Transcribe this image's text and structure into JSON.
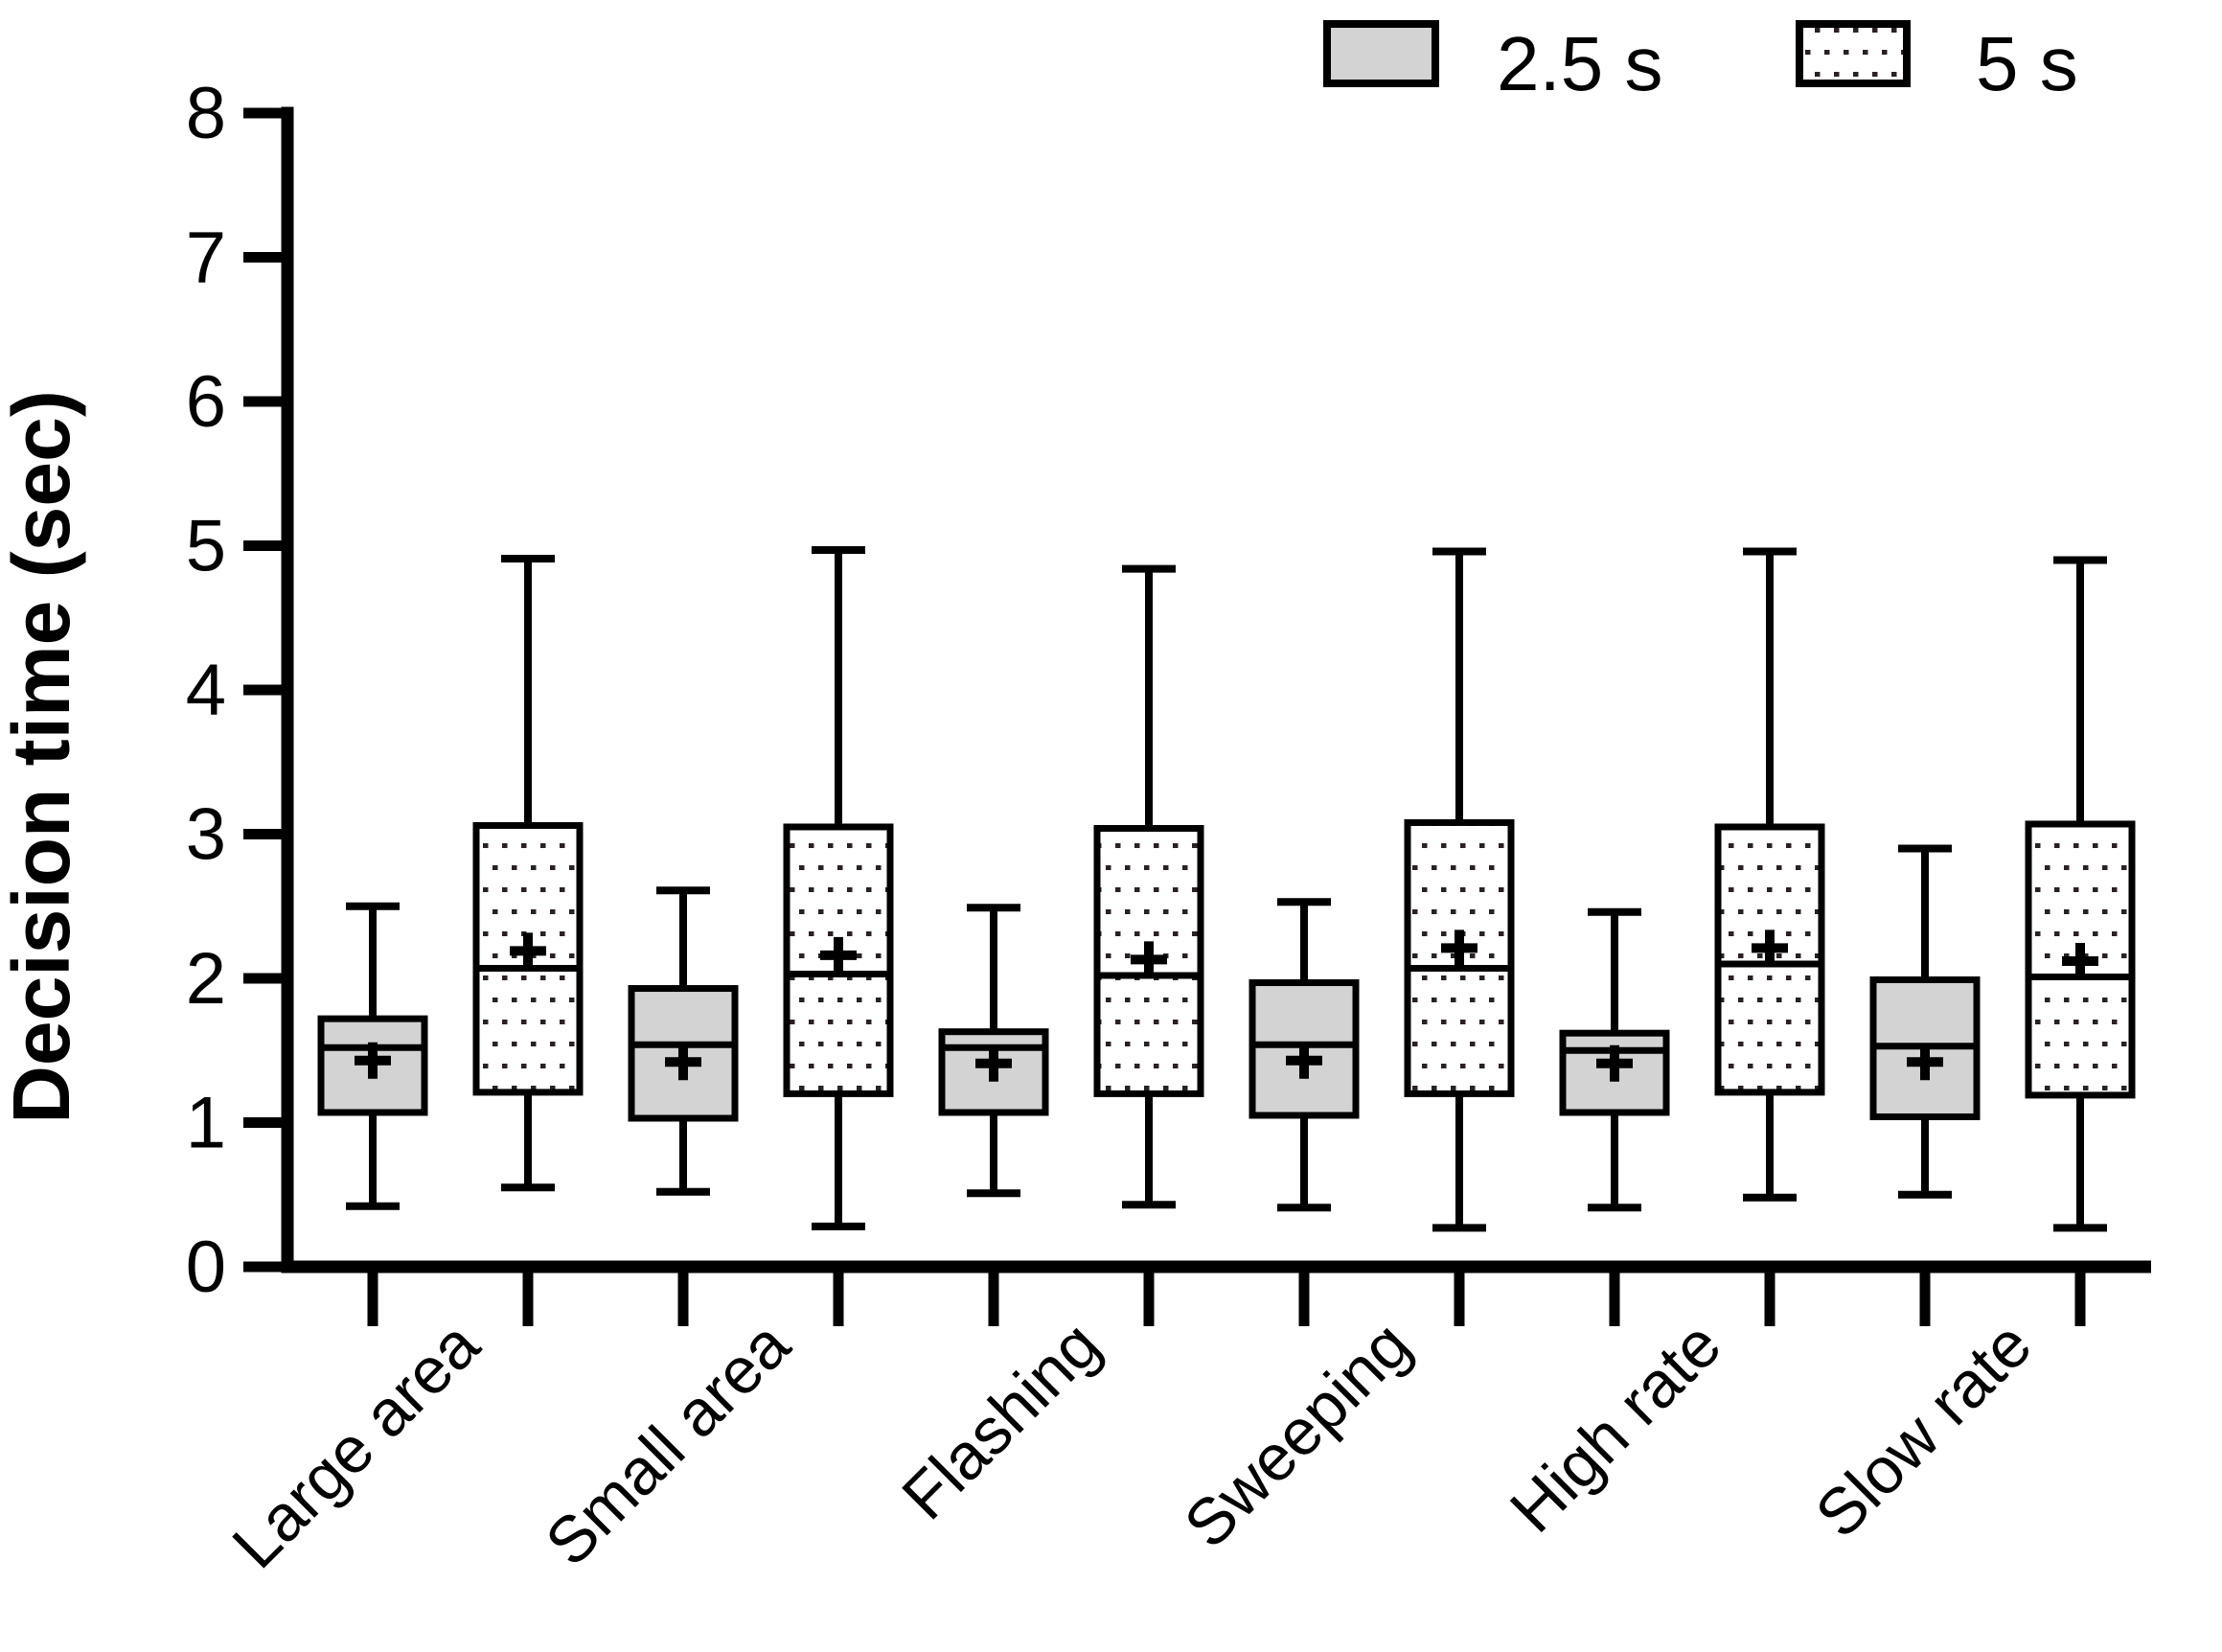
{
  "figure": {
    "ylabel": "Decision time (sec)",
    "legend": [
      {
        "label": "2.5 s",
        "swatch": "gray-solid"
      },
      {
        "label": "5 s",
        "swatch": "dotted"
      }
    ]
  },
  "colors": {
    "background": "#ffffff",
    "axis_color": "#000000",
    "box_gray_fill": "#d3d3d3",
    "box_dotted_fill": "#ffffff",
    "dot_color": "#2a2123",
    "text_color": "#000000"
  },
  "chart_data": {
    "type": "boxplot",
    "title": "",
    "xlabel": "",
    "ylabel": "Decision time (sec)",
    "ylim": [
      0,
      8
    ],
    "yticks": [
      0,
      1,
      2,
      3,
      4,
      5,
      6,
      7,
      8
    ],
    "grid": false,
    "legend_position": "top-right",
    "mean_marker": "+",
    "whisker_caps": true,
    "categories": [
      "Large area",
      "Small area",
      "Flashing",
      "Sweeping",
      "High rate",
      "Slow rate"
    ],
    "series": [
      {
        "name": "2.5 s",
        "style": "solid-gray",
        "boxes": [
          {
            "min": 0.42,
            "q1": 1.07,
            "median": 1.52,
            "mean": 1.43,
            "q3": 1.72,
            "max": 2.5
          },
          {
            "min": 0.52,
            "q1": 1.03,
            "median": 1.54,
            "mean": 1.42,
            "q3": 1.93,
            "max": 2.61
          },
          {
            "min": 0.51,
            "q1": 1.07,
            "median": 1.52,
            "mean": 1.41,
            "q3": 1.63,
            "max": 2.49
          },
          {
            "min": 0.41,
            "q1": 1.05,
            "median": 1.54,
            "mean": 1.43,
            "q3": 1.97,
            "max": 2.53
          },
          {
            "min": 0.41,
            "q1": 1.07,
            "median": 1.5,
            "mean": 1.41,
            "q3": 1.62,
            "max": 2.46
          },
          {
            "min": 0.5,
            "q1": 1.04,
            "median": 1.53,
            "mean": 1.42,
            "q3": 1.99,
            "max": 2.9
          }
        ]
      },
      {
        "name": "5 s",
        "style": "dotted",
        "boxes": [
          {
            "min": 0.55,
            "q1": 1.21,
            "median": 2.07,
            "mean": 2.19,
            "q3": 3.06,
            "max": 4.91
          },
          {
            "min": 0.28,
            "q1": 1.2,
            "median": 2.03,
            "mean": 2.16,
            "q3": 3.05,
            "max": 4.97
          },
          {
            "min": 0.43,
            "q1": 1.2,
            "median": 2.02,
            "mean": 2.13,
            "q3": 3.04,
            "max": 4.84
          },
          {
            "min": 0.27,
            "q1": 1.2,
            "median": 2.07,
            "mean": 2.21,
            "q3": 3.08,
            "max": 4.96
          },
          {
            "min": 0.48,
            "q1": 1.21,
            "median": 2.1,
            "mean": 2.21,
            "q3": 3.05,
            "max": 4.96
          },
          {
            "min": 0.27,
            "q1": 1.19,
            "median": 2.01,
            "mean": 2.12,
            "q3": 3.07,
            "max": 4.9
          }
        ]
      }
    ]
  }
}
